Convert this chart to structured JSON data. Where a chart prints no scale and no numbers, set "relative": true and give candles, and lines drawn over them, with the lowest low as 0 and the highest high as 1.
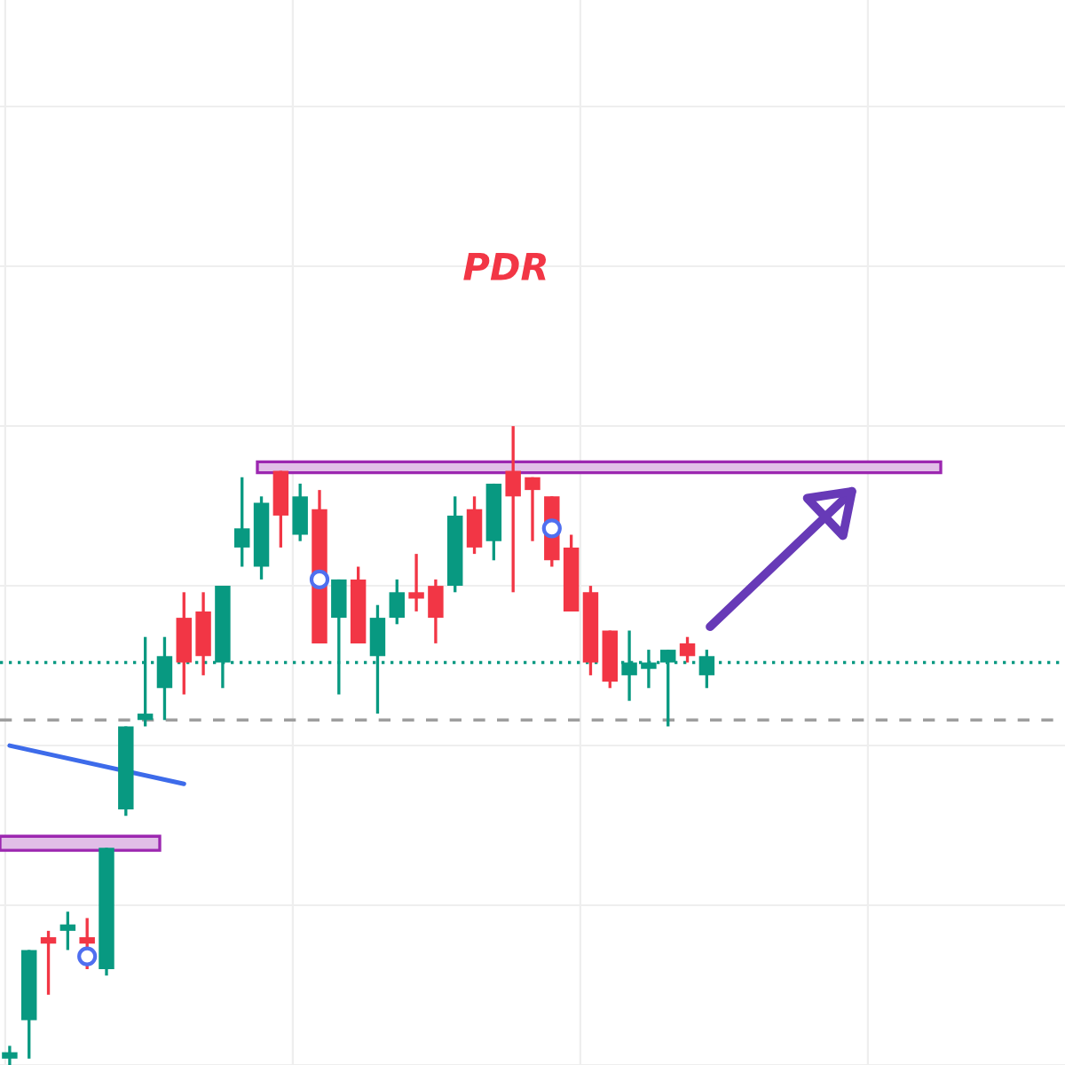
{
  "chart_data": {
    "type": "candlestick",
    "relative": true,
    "grid": true,
    "annotations": [
      "PDR"
    ],
    "categories": [
      null,
      null,
      null,
      null,
      null,
      null,
      null,
      null,
      null,
      null,
      null,
      null,
      null,
      null,
      null,
      null,
      null,
      null,
      null,
      null,
      null,
      null,
      null,
      null,
      null,
      null,
      null,
      null,
      null,
      null,
      null,
      null,
      null,
      null,
      null,
      null,
      null
    ],
    "ohlc": [
      [
        0.01,
        0.03,
        0.0,
        0.02
      ],
      [
        0.07,
        0.18,
        0.01,
        0.18
      ],
      [
        0.2,
        0.21,
        0.11,
        0.19
      ],
      [
        0.21,
        0.24,
        0.18,
        0.22
      ],
      [
        0.2,
        0.23,
        0.15,
        0.19
      ],
      [
        0.15,
        0.34,
        0.14,
        0.34
      ],
      [
        0.4,
        0.53,
        0.39,
        0.53
      ],
      [
        0.54,
        0.67,
        0.53,
        0.55
      ],
      [
        0.59,
        0.67,
        0.54,
        0.64
      ],
      [
        0.7,
        0.74,
        0.58,
        0.63
      ],
      [
        0.71,
        0.74,
        0.61,
        0.64
      ],
      [
        0.63,
        0.75,
        0.59,
        0.75
      ],
      [
        0.81,
        0.92,
        0.78,
        0.84
      ],
      [
        0.78,
        0.89,
        0.76,
        0.88
      ],
      [
        0.93,
        0.93,
        0.81,
        0.86
      ],
      [
        0.83,
        0.91,
        0.82,
        0.89
      ],
      [
        0.87,
        0.9,
        0.66,
        0.66
      ],
      [
        0.7,
        0.76,
        0.58,
        0.76
      ],
      [
        0.76,
        0.78,
        0.66,
        0.66
      ],
      [
        0.64,
        0.72,
        0.55,
        0.7
      ],
      [
        0.7,
        0.76,
        0.69,
        0.74
      ],
      [
        0.74,
        0.8,
        0.71,
        0.73
      ],
      [
        0.75,
        0.76,
        0.66,
        0.7
      ],
      [
        0.75,
        0.89,
        0.74,
        0.86
      ],
      [
        0.87,
        0.89,
        0.8,
        0.81
      ],
      [
        0.82,
        0.91,
        0.79,
        0.91
      ],
      [
        0.93,
        1.0,
        0.74,
        0.89
      ],
      [
        0.92,
        0.92,
        0.82,
        0.9
      ],
      [
        0.89,
        0.89,
        0.78,
        0.79
      ],
      [
        0.81,
        0.83,
        0.71,
        0.71
      ],
      [
        0.74,
        0.75,
        0.61,
        0.63
      ],
      [
        0.68,
        0.68,
        0.59,
        0.6
      ],
      [
        0.61,
        0.68,
        0.57,
        0.63
      ],
      [
        0.62,
        0.65,
        0.59,
        0.63
      ],
      [
        0.63,
        0.65,
        0.53,
        0.65
      ],
      [
        0.66,
        0.67,
        0.63,
        0.64
      ],
      [
        0.61,
        0.65,
        0.59,
        0.64
      ]
    ],
    "series": [
      {
        "type": "line",
        "color": "#3d6bea",
        "values": [
          0.5,
          null,
          null,
          null,
          null,
          null,
          null,
          null,
          null,
          0.44,
          null,
          null,
          null,
          null,
          null,
          null,
          null,
          null,
          null,
          null,
          null,
          null,
          null,
          null,
          null,
          null,
          null,
          null,
          null,
          null,
          null,
          null,
          null,
          null,
          null,
          null,
          null
        ]
      },
      {
        "type": "scatter",
        "color": "#4f6ff0",
        "marker": "circle",
        "values": [
          null,
          null,
          null,
          null,
          0.17,
          null,
          null,
          null,
          null,
          null,
          null,
          null,
          null,
          null,
          null,
          null,
          0.76,
          null,
          null,
          null,
          null,
          null,
          null,
          null,
          null,
          null,
          null,
          null,
          0.84,
          null,
          null,
          null,
          null,
          null,
          null,
          null,
          null
        ]
      }
    ],
    "ref_lines": [
      {
        "axis": "y",
        "value": 0.63,
        "color": "#089981",
        "line_style": "dotted"
      },
      {
        "axis": "y",
        "value": 0.54,
        "color": "#9e9e9e",
        "line_style": "dashed"
      }
    ],
    "bands": [
      {
        "axis": "y",
        "from": 0.927,
        "to": 0.944,
        "color": "#e1bee7"
      },
      {
        "axis": "y",
        "from": 0.336,
        "to": 0.358,
        "color": "#e1bee7"
      }
    ]
  }
}
